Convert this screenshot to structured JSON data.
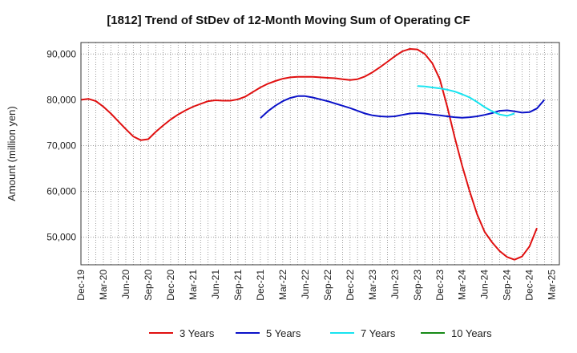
{
  "chart_data": {
    "type": "line",
    "title": "[1812]  Trend of StDev of 12-Month Moving Sum of Operating CF",
    "xlabel": "",
    "ylabel": "Amount (million yen)",
    "ylim": [
      44000,
      92500
    ],
    "yticks": [
      50000,
      60000,
      70000,
      80000,
      90000
    ],
    "ytick_labels": [
      "50,000",
      "60,000",
      "70,000",
      "80,000",
      "90,000"
    ],
    "xticks": [
      "Dec-19",
      "Mar-20",
      "Jun-20",
      "Sep-20",
      "Dec-20",
      "Mar-21",
      "Jun-21",
      "Sep-21",
      "Dec-21",
      "Mar-22",
      "Jun-22",
      "Sep-22",
      "Dec-22",
      "Mar-23",
      "Jun-23",
      "Sep-23",
      "Dec-23",
      "Mar-24",
      "Jun-24",
      "Sep-24",
      "Dec-24",
      "Mar-25"
    ],
    "grid": true,
    "legend_position": "bottom",
    "series": [
      {
        "name": "3 Years",
        "color": "#e01010",
        "start": "Dec-19",
        "values": [
          80000,
          80200,
          79700,
          78500,
          77000,
          75300,
          73600,
          72000,
          71200,
          71400,
          73000,
          74400,
          75700,
          76800,
          77700,
          78500,
          79100,
          79700,
          79900,
          79800,
          79800,
          80100,
          80700,
          81700,
          82700,
          83500,
          84100,
          84600,
          84900,
          85000,
          85000,
          85000,
          84900,
          84800,
          84700,
          84500,
          84300,
          84500,
          85100,
          86000,
          87100,
          88300,
          89500,
          90600,
          91100,
          91000,
          90000,
          88000,
          84500,
          78500,
          71800,
          65600,
          60000,
          55000,
          51200,
          48900,
          47000,
          45700,
          45100,
          45800,
          48000,
          52000
        ]
      },
      {
        "name": "5 Years",
        "color": "#0b12c8",
        "start": "Dec-21",
        "values": [
          76000,
          77500,
          78700,
          79700,
          80400,
          80800,
          80800,
          80500,
          80100,
          79700,
          79200,
          78700,
          78200,
          77600,
          77000,
          76600,
          76400,
          76300,
          76400,
          76700,
          77000,
          77100,
          77000,
          76800,
          76600,
          76400,
          76200,
          76100,
          76200,
          76400,
          76700,
          77100,
          77600,
          77700,
          77500,
          77200,
          77300,
          78100,
          80000
        ]
      },
      {
        "name": "7 Years",
        "color": "#18e4f0",
        "start": "Sep-23",
        "values": [
          83000,
          82900,
          82700,
          82500,
          82200,
          81800,
          81200,
          80500,
          79500,
          78400,
          77500,
          76800,
          76500,
          77000
        ]
      },
      {
        "name": "10 Years",
        "color": "#178a17",
        "start": "Sep-24",
        "values": []
      }
    ]
  }
}
